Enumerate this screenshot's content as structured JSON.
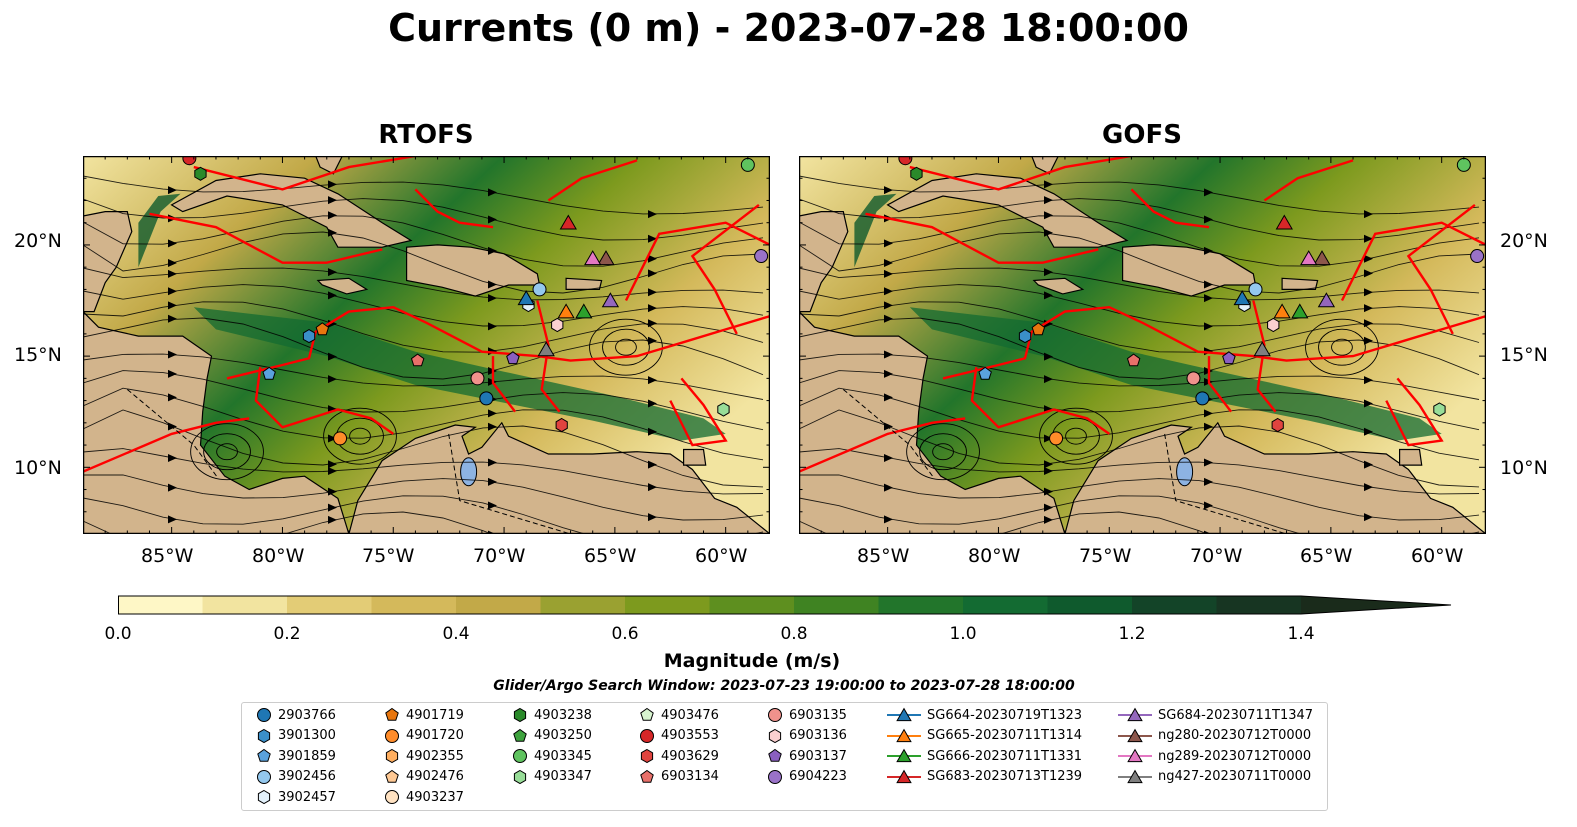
{
  "title": "Currents (0 m) - 2023-07-28 18:00:00",
  "panels": [
    {
      "title": "RTOFS"
    },
    {
      "title": "GOFS"
    }
  ],
  "lat_labels": [
    "20°N",
    "15°N",
    "10°N"
  ],
  "lon_labels": [
    "85°W",
    "80°W",
    "75°W",
    "70°W",
    "65°W",
    "60°W"
  ],
  "map_extent": {
    "lon": [
      -89,
      -58
    ],
    "lat": [
      7,
      24
    ]
  },
  "colors": {
    "land": "#d2b48c",
    "water_low": "#fef9d3",
    "water_high": "#1a2e14",
    "boundary": "#ff0000",
    "stream": "#000000",
    "lake": "#8db3e2"
  },
  "colorbar": {
    "label": "Magnitude (m/s)",
    "ticks": [
      "0.0",
      "0.2",
      "0.4",
      "0.6",
      "0.8",
      "1.0",
      "1.2",
      "1.4"
    ],
    "range": [
      0,
      1.5
    ],
    "extend": "max",
    "colors": [
      "#fef7c6",
      "#f2e4a0",
      "#e3cc76",
      "#d4b95b",
      "#c2a948",
      "#9aa131",
      "#7d9a1e",
      "#5e8f1f",
      "#3f8322",
      "#22752b",
      "#136b32",
      "#0f5a2d",
      "#134428",
      "#173522",
      "#1a2b1b"
    ]
  },
  "search_window": "Glider/Argo Search Window: 2023-07-23 19:00:00 to 2023-07-28 18:00:00",
  "legend": {
    "columns": [
      [
        {
          "label": "2903766",
          "marker": "circle",
          "color": "#1f77b4"
        },
        {
          "label": "3901300",
          "marker": "hexagon",
          "color": "#3a8fc9"
        },
        {
          "label": "3901859",
          "marker": "pentagon",
          "color": "#5aa2de"
        },
        {
          "label": "3902456",
          "marker": "circle",
          "color": "#94c8ee"
        },
        {
          "label": "3902457",
          "marker": "hexagon",
          "color": "#e3f1fb"
        }
      ],
      [
        {
          "label": "4901719",
          "marker": "pentagon",
          "color": "#e8760e"
        },
        {
          "label": "4901720",
          "marker": "circle",
          "color": "#ff8c2a"
        },
        {
          "label": "4902355",
          "marker": "hexagon",
          "color": "#ffae5f"
        },
        {
          "label": "4902476",
          "marker": "pentagon",
          "color": "#ffc994"
        },
        {
          "label": "4903237",
          "marker": "circle",
          "color": "#ffe2c2"
        }
      ],
      [
        {
          "label": "4903238",
          "marker": "hexagon",
          "color": "#2a8a2a"
        },
        {
          "label": "4903250",
          "marker": "pentagon",
          "color": "#3ea33e"
        },
        {
          "label": "4903345",
          "marker": "circle",
          "color": "#5fc35f"
        },
        {
          "label": "4903347",
          "marker": "hexagon",
          "color": "#98dd98"
        }
      ],
      [
        {
          "label": "4903476",
          "marker": "pentagon",
          "color": "#d8f5d0"
        },
        {
          "label": "4903553",
          "marker": "circle",
          "color": "#d62728"
        },
        {
          "label": "4903629",
          "marker": "hexagon",
          "color": "#e0443f"
        },
        {
          "label": "6903134",
          "marker": "pentagon",
          "color": "#e8706a"
        }
      ],
      [
        {
          "label": "6903135",
          "marker": "circle",
          "color": "#f0928c"
        },
        {
          "label": "6903136",
          "marker": "hexagon",
          "color": "#fbd0d0"
        },
        {
          "label": "6903137",
          "marker": "pentagon",
          "color": "#8a5fc0"
        },
        {
          "label": "6904223",
          "marker": "circle",
          "color": "#9a72c8"
        }
      ],
      [
        {
          "label": "SG664-20230719T1323",
          "marker": "triangle",
          "color": "#1f77b4"
        },
        {
          "label": "SG665-20230711T1314",
          "marker": "triangle",
          "color": "#ff7f0e"
        },
        {
          "label": "SG666-20230711T1331",
          "marker": "triangle",
          "color": "#2ca02c"
        },
        {
          "label": "SG683-20230713T1239",
          "marker": "triangle",
          "color": "#d62728"
        }
      ],
      [
        {
          "label": "SG684-20230711T1347",
          "marker": "triangle",
          "color": "#9467bd"
        },
        {
          "label": "ng280-20230712T0000",
          "marker": "triangle",
          "color": "#8c564b"
        },
        {
          "label": "ng289-20230712T0000",
          "marker": "triangle",
          "color": "#e377c2"
        },
        {
          "label": "ng427-20230711T0000",
          "marker": "triangle",
          "color": "#7f7f7f"
        }
      ]
    ]
  },
  "observations": [
    {
      "id": "2903766",
      "lon": -70.8,
      "lat": 13.1
    },
    {
      "id": "3901300",
      "lon": -78.8,
      "lat": 15.9
    },
    {
      "id": "3901859",
      "lon": -80.6,
      "lat": 14.2
    },
    {
      "id": "3902456",
      "lon": -68.4,
      "lat": 18.0
    },
    {
      "id": "3902457",
      "lon": -68.9,
      "lat": 17.3
    },
    {
      "id": "4901719",
      "lon": -78.2,
      "lat": 16.2
    },
    {
      "id": "4901720",
      "lon": -77.4,
      "lat": 11.3
    },
    {
      "id": "4903238",
      "lon": -83.7,
      "lat": 23.2
    },
    {
      "id": "4903345",
      "lon": -59.0,
      "lat": 23.6
    },
    {
      "id": "4903347",
      "lon": -60.1,
      "lat": 12.6
    },
    {
      "id": "4903553",
      "lon": -84.2,
      "lat": 23.9
    },
    {
      "id": "6903134",
      "lon": -73.9,
      "lat": 14.8
    },
    {
      "id": "6903135",
      "lon": -71.2,
      "lat": 14.0
    },
    {
      "id": "6903136",
      "lon": -67.6,
      "lat": 16.4
    },
    {
      "id": "6903137",
      "lon": -69.6,
      "lat": 14.9
    },
    {
      "id": "6904223",
      "lon": -58.4,
      "lat": 19.5
    },
    {
      "id": "4903629",
      "lon": -67.4,
      "lat": 11.9
    }
  ],
  "gliders": [
    {
      "id": "SG664-20230719T1323",
      "lon": -69.0,
      "lat": 17.6
    },
    {
      "id": "SG665-20230711T1314",
      "lon": -67.2,
      "lat": 17.0
    },
    {
      "id": "SG666-20230711T1331",
      "lon": -66.4,
      "lat": 17.0
    },
    {
      "id": "SG683-20230713T1239",
      "lon": -67.1,
      "lat": 21.0
    },
    {
      "id": "SG684-20230711T1347",
      "lon": -65.2,
      "lat": 17.5
    },
    {
      "id": "ng280-20230712T0000",
      "lon": -65.4,
      "lat": 19.4
    },
    {
      "id": "ng289-20230712T0000",
      "lon": -66.0,
      "lat": 19.4
    },
    {
      "id": "ng427-20230711T0000",
      "lon": -68.1,
      "lat": 15.3
    }
  ]
}
